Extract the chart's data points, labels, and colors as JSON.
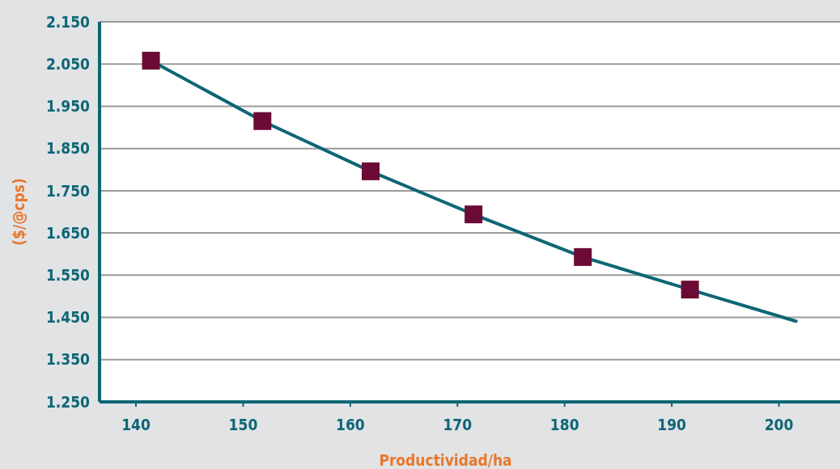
{
  "chart_data": {
    "type": "line",
    "xlabel": "Productividad/ha",
    "ylabel": "($/@cps)",
    "xlim": [
      136.6,
      205.7
    ],
    "xticks": [
      140,
      150,
      160,
      170,
      180,
      190,
      200
    ],
    "ylim": [
      1250,
      2150
    ],
    "yticks": [
      {
        "value": 1250,
        "label": "1.250"
      },
      {
        "value": 1350,
        "label": "1.350"
      },
      {
        "value": 1450,
        "label": "1.450"
      },
      {
        "value": 1550,
        "label": "1.550"
      },
      {
        "value": 1650,
        "label": "1.650"
      },
      {
        "value": 1750,
        "label": "1.750"
      },
      {
        "value": 1850,
        "label": "1.850"
      },
      {
        "value": 1950,
        "label": "1.950"
      },
      {
        "value": 2050,
        "label": "2.050"
      },
      {
        "value": 2150,
        "label": "2.150"
      }
    ],
    "grid": "y",
    "marker": "none",
    "line_style": "solid",
    "series": [
      {
        "color": "#0e6675",
        "x": [
          141.4,
          151.8,
          161.9,
          171.5,
          181.7,
          191.7,
          201.6
        ],
        "values": [
          2058,
          1915,
          1796,
          1694,
          1593,
          1516,
          1441
        ]
      },
      {
        "type": "scatter",
        "marker": "square",
        "color": "#6b0b35",
        "x": [
          141.4,
          151.8,
          161.9,
          171.5,
          181.7,
          191.7
        ],
        "values": [
          2058,
          1915,
          1796,
          1694,
          1593,
          1516
        ]
      }
    ]
  }
}
